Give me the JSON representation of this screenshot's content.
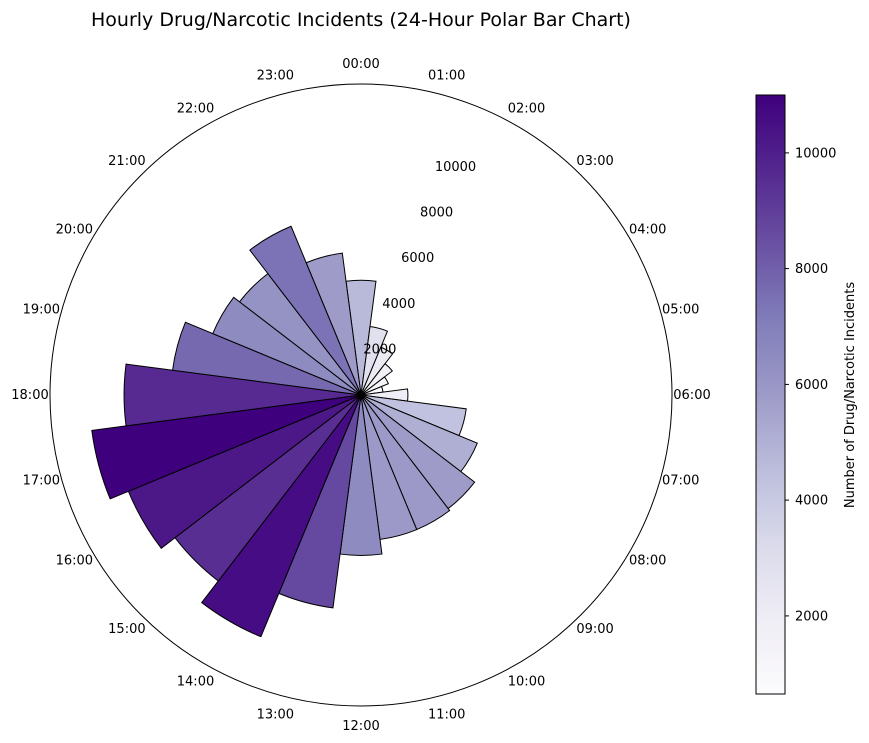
{
  "chart_data": {
    "type": "bar",
    "subtype": "polar",
    "title": "Hourly Drug/Narcotic Incidents (24-Hour Polar Bar Chart)",
    "categories": [
      "00:00",
      "01:00",
      "02:00",
      "03:00",
      "04:00",
      "05:00",
      "06:00",
      "07:00",
      "08:00",
      "09:00",
      "10:00",
      "11:00",
      "12:00",
      "13:00",
      "14:00",
      "15:00",
      "16:00",
      "17:00",
      "18:00",
      "19:00",
      "20:00",
      "21:00",
      "22:00",
      "23:00"
    ],
    "values": [
      4650,
      2800,
      2100,
      1600,
      1200,
      900,
      1900,
      4300,
      5100,
      5800,
      5900,
      5900,
      6500,
      8700,
      10600,
      9500,
      10200,
      11000,
      9600,
      7700,
      6500,
      6200,
      7400,
      5800
    ],
    "radial_ticks": [
      2000,
      4000,
      6000,
      8000,
      10000
    ],
    "rlim": [
      0,
      12600
    ],
    "colorbar": {
      "label": "Number of Drug/Narcotic Incidents",
      "ticks": [
        2000,
        4000,
        6000,
        8000,
        10000
      ],
      "range": [
        650,
        11000
      ],
      "colormap": "Purples"
    },
    "direction": "clockwise",
    "zero_location": "top",
    "grid": false
  }
}
